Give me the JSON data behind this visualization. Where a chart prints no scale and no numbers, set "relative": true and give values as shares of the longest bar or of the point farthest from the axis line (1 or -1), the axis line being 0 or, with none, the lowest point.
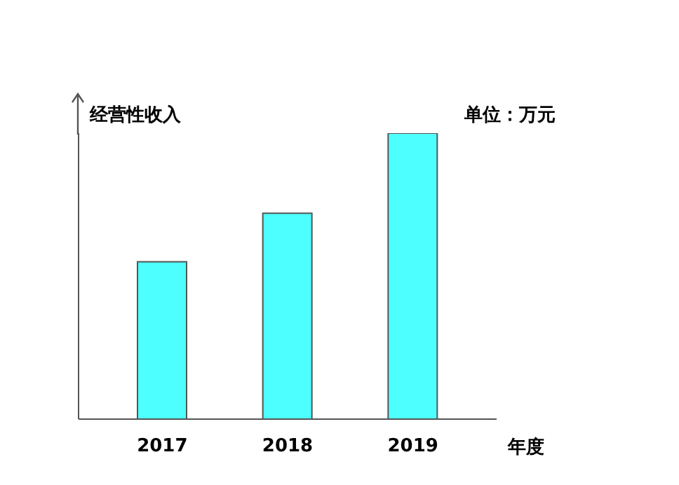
{
  "chart_data": {
    "type": "bar",
    "relative": true,
    "ylabel": "经营性收入",
    "xlabel": "年度",
    "annotations": [
      "单位：万元"
    ],
    "categories": [
      "2017",
      "2018",
      "2019"
    ],
    "values": [
      0.55,
      0.72,
      1
    ],
    "color": "#4dffff"
  }
}
